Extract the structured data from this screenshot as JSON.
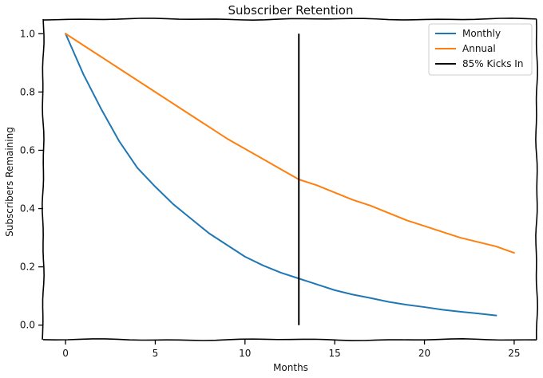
{
  "chart_data": {
    "type": "line",
    "title": "Subscriber Retention",
    "xlabel": "Months",
    "ylabel": "Subscribers Remaining",
    "xlim": [
      -1.25,
      26.25
    ],
    "ylim": [
      -0.05,
      1.05
    ],
    "xticks": [
      0,
      5,
      10,
      15,
      20,
      25
    ],
    "yticks": [
      0.0,
      0.2,
      0.4,
      0.6,
      0.8,
      1.0
    ],
    "xtick_labels": [
      "0",
      "5",
      "10",
      "15",
      "20",
      "25"
    ],
    "ytick_labels": [
      "0.0",
      "0.2",
      "0.4",
      "0.6",
      "0.8",
      "1.0"
    ],
    "grid": false,
    "legend_position": "top-right",
    "series": [
      {
        "name": "Monthly",
        "color": "#1f77b4",
        "x": [
          0,
          1,
          2,
          3,
          4,
          5,
          6,
          7,
          8,
          9,
          10,
          11,
          12,
          13,
          14,
          15,
          16,
          17,
          18,
          19,
          20,
          21,
          22,
          23,
          24
        ],
        "y": [
          1.0,
          0.86,
          0.74,
          0.63,
          0.54,
          0.475,
          0.415,
          0.365,
          0.315,
          0.275,
          0.235,
          0.205,
          0.18,
          0.16,
          0.14,
          0.12,
          0.105,
          0.093,
          0.08,
          0.07,
          0.062,
          0.053,
          0.046,
          0.04,
          0.033
        ]
      },
      {
        "name": "Annual",
        "color": "#ff7f0e",
        "x": [
          0,
          1,
          2,
          3,
          4,
          5,
          6,
          7,
          8,
          9,
          10,
          11,
          12,
          13,
          14,
          15,
          16,
          17,
          18,
          19,
          20,
          21,
          22,
          23,
          24,
          25
        ],
        "y": [
          1.0,
          0.96,
          0.92,
          0.88,
          0.84,
          0.8,
          0.76,
          0.72,
          0.68,
          0.64,
          0.605,
          0.57,
          0.535,
          0.5,
          0.48,
          0.455,
          0.43,
          0.41,
          0.385,
          0.36,
          0.34,
          0.32,
          0.3,
          0.285,
          0.27,
          0.248
        ]
      }
    ],
    "vline": {
      "name": "85% Kicks In",
      "color": "#000000",
      "x": 13,
      "y_range": [
        0.0,
        1.0
      ]
    }
  }
}
